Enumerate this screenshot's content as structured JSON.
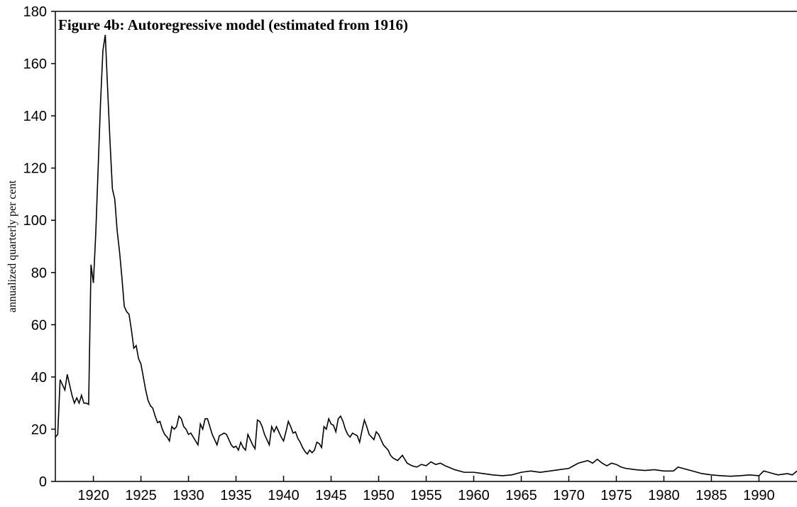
{
  "chart_data": {
    "type": "line",
    "title": "Figure 4b: Autoregressive model (estimated from 1916)",
    "y_label": "annualized quarterly per cent",
    "xlim": [
      1916,
      1994
    ],
    "ylim": [
      0,
      180
    ],
    "xticks": [
      1920,
      1925,
      1930,
      1935,
      1940,
      1945,
      1950,
      1955,
      1960,
      1965,
      1970,
      1975,
      1980,
      1985,
      1990
    ],
    "yticks": [
      0,
      20,
      40,
      60,
      80,
      100,
      120,
      140,
      160,
      180
    ],
    "x": [
      1916,
      1916.25,
      1916.5,
      1916.75,
      1917,
      1917.25,
      1917.5,
      1917.75,
      1918,
      1918.25,
      1918.5,
      1918.75,
      1919,
      1919.25,
      1919.5,
      1919.75,
      1920,
      1920.25,
      1920.5,
      1920.75,
      1921,
      1921.25,
      1921.5,
      1921.75,
      1922,
      1922.25,
      1922.5,
      1922.75,
      1923,
      1923.25,
      1923.5,
      1923.75,
      1924,
      1924.25,
      1924.5,
      1924.75,
      1925,
      1925.25,
      1925.5,
      1925.75,
      1926,
      1926.25,
      1926.5,
      1926.75,
      1927,
      1927.25,
      1927.5,
      1927.75,
      1928,
      1928.25,
      1928.5,
      1928.75,
      1929,
      1929.25,
      1929.5,
      1929.75,
      1930,
      1930.25,
      1930.5,
      1930.75,
      1931,
      1931.25,
      1931.5,
      1931.75,
      1932,
      1932.25,
      1932.5,
      1932.75,
      1933,
      1933.25,
      1933.5,
      1933.75,
      1934,
      1934.25,
      1934.5,
      1934.75,
      1935,
      1935.25,
      1935.5,
      1935.75,
      1936,
      1936.25,
      1936.5,
      1936.75,
      1937,
      1937.25,
      1937.5,
      1937.75,
      1938,
      1938.25,
      1938.5,
      1938.75,
      1939,
      1939.25,
      1939.5,
      1939.75,
      1940,
      1940.25,
      1940.5,
      1940.75,
      1941,
      1941.25,
      1941.5,
      1941.75,
      1942,
      1942.25,
      1942.5,
      1942.75,
      1943,
      1943.25,
      1943.5,
      1943.75,
      1944,
      1944.25,
      1944.5,
      1944.75,
      1945,
      1945.25,
      1945.5,
      1945.75,
      1946,
      1946.25,
      1946.5,
      1946.75,
      1947,
      1947.25,
      1947.5,
      1947.75,
      1948,
      1948.25,
      1948.5,
      1948.75,
      1949,
      1949.25,
      1949.5,
      1949.75,
      1950,
      1950.25,
      1950.5,
      1950.75,
      1951,
      1951.25,
      1951.5,
      1951.75,
      1952,
      1952.5,
      1953,
      1953.5,
      1954,
      1954.5,
      1955,
      1955.5,
      1956,
      1956.5,
      1957,
      1958,
      1959,
      1960,
      1961,
      1962,
      1963,
      1964,
      1965,
      1966,
      1967,
      1968,
      1969,
      1970,
      1971,
      1972,
      1972.5,
      1973,
      1973.5,
      1974,
      1974.5,
      1975,
      1975.5,
      1976,
      1977,
      1978,
      1979,
      1980,
      1981,
      1981.5,
      1982,
      1983,
      1984,
      1985,
      1986,
      1987,
      1988,
      1989,
      1990,
      1990.5,
      1991,
      1991.5,
      1992,
      1993,
      1993.5,
      1994
    ],
    "series": [
      {
        "color": "#000000",
        "values": [
          17,
          18,
          39,
          37,
          35,
          41,
          37,
          33,
          30,
          32,
          30,
          33,
          30,
          30,
          29.5,
          83,
          76,
          95,
          120,
          145,
          165,
          171,
          150,
          130,
          112,
          108,
          96,
          88,
          78,
          67,
          65,
          64,
          58,
          51,
          52,
          47,
          45,
          40,
          35,
          31,
          29,
          28,
          25,
          22.5,
          23,
          20,
          18,
          17,
          15.5,
          21,
          20,
          21,
          25,
          24,
          21,
          20,
          18,
          18.5,
          17,
          15.5,
          14,
          22,
          20,
          24,
          24,
          21,
          18,
          16,
          14,
          17.5,
          18,
          18.5,
          18,
          16,
          14,
          13,
          13.5,
          12,
          15,
          13,
          12,
          18,
          16,
          14,
          12.5,
          23.5,
          23,
          21,
          18,
          16,
          14,
          21,
          19,
          21,
          19,
          17,
          15.5,
          19,
          23,
          21,
          18.5,
          19,
          16.5,
          15,
          13,
          11.5,
          10.5,
          12,
          11,
          12,
          15,
          14.5,
          13,
          21,
          20,
          24,
          22,
          21.5,
          19,
          24,
          25,
          23,
          20,
          18,
          17,
          18.5,
          18,
          17.5,
          15,
          19.5,
          23.5,
          21,
          18,
          17,
          16,
          19,
          18,
          16,
          14,
          13,
          12,
          10,
          9,
          8.5,
          8,
          10,
          7,
          6,
          5.5,
          6.5,
          6,
          7.5,
          6.5,
          7,
          6,
          4.5,
          3.5,
          3.5,
          3,
          2.5,
          2.2,
          2.5,
          3.5,
          4,
          3.5,
          4,
          4.5,
          5,
          7,
          8,
          7,
          8.5,
          7,
          6,
          7,
          6.5,
          5.5,
          5,
          4.5,
          4.2,
          4.5,
          4,
          4,
          5.5,
          5,
          4,
          3,
          2.5,
          2.2,
          2,
          2.2,
          2.5,
          2.2,
          4,
          3.5,
          3,
          2.5,
          3,
          2.5,
          4
        ]
      }
    ]
  }
}
